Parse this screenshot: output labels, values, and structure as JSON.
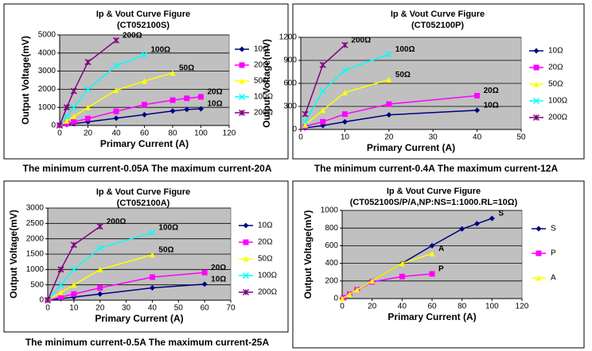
{
  "chart_data": [
    {
      "type": "line",
      "title": "Ip & Vout Curve Figure",
      "subtitle": "(CT052100S)",
      "y_label": "Output Voltage(mV)",
      "x_label": "Primary   Current (A)",
      "caption": "The minimum current-0.05A  The maximum current-20A",
      "xlim": [
        0,
        120
      ],
      "xticks": [
        0,
        20,
        40,
        60,
        80,
        100,
        120
      ],
      "ylim": [
        0,
        5000
      ],
      "yticks": [
        0,
        1000,
        2000,
        3000,
        4000,
        5000
      ],
      "grid": true,
      "series": [
        {
          "name": "10Ω",
          "color": "#000080",
          "x": [
            0,
            5,
            10,
            20,
            40,
            60,
            80,
            90,
            100
          ],
          "values": [
            0,
            50,
            100,
            200,
            400,
            600,
            800,
            880,
            920
          ]
        },
        {
          "name": "20Ω",
          "color": "#ff00ff",
          "x": [
            0,
            5,
            10,
            20,
            40,
            60,
            80,
            90,
            100
          ],
          "values": [
            0,
            100,
            200,
            380,
            780,
            1150,
            1400,
            1500,
            1580
          ]
        },
        {
          "name": "50Ω",
          "color": "#ffff00",
          "x": [
            0,
            5,
            10,
            20,
            40,
            60,
            80
          ],
          "values": [
            0,
            250,
            500,
            1000,
            1950,
            2450,
            2900
          ]
        },
        {
          "name": "100Ω",
          "color": "#00ffff",
          "x": [
            0,
            5,
            10,
            20,
            40,
            60
          ],
          "values": [
            0,
            500,
            1000,
            2000,
            3300,
            3900
          ]
        },
        {
          "name": "200Ω",
          "color": "#800080",
          "x": [
            0,
            5,
            10,
            20,
            40
          ],
          "values": [
            0,
            1000,
            1900,
            3500,
            4700
          ]
        }
      ],
      "annotations": [
        "200Ω",
        "100Ω",
        "50Ω",
        "20Ω",
        "10Ω"
      ]
    },
    {
      "type": "line",
      "title": "Ip & Vout Curve Figure",
      "subtitle": "(CT052100P)",
      "y_label": "Output Voltage(mV)",
      "x_label": "Primary   Current (A)",
      "caption": "The minimum current-0.4A  The maximum current-12A",
      "xlim": [
        0,
        50
      ],
      "xticks": [
        0,
        10,
        20,
        30,
        40,
        50
      ],
      "ylim": [
        0,
        1200
      ],
      "yticks": [
        0,
        300,
        600,
        900,
        1200
      ],
      "grid": true,
      "series": [
        {
          "name": "10Ω",
          "color": "#000080",
          "x": [
            1,
            5,
            10,
            20,
            40
          ],
          "values": [
            20,
            50,
            100,
            190,
            250
          ]
        },
        {
          "name": "20Ω",
          "color": "#ff00ff",
          "x": [
            1,
            5,
            10,
            20,
            40
          ],
          "values": [
            40,
            100,
            200,
            330,
            440
          ]
        },
        {
          "name": "50Ω",
          "color": "#ffff00",
          "x": [
            1,
            5,
            10,
            20
          ],
          "values": [
            60,
            250,
            480,
            650
          ]
        },
        {
          "name": "100Ω",
          "color": "#00ffff",
          "x": [
            1,
            5,
            10,
            20
          ],
          "values": [
            100,
            500,
            770,
            980
          ]
        },
        {
          "name": "200Ω",
          "color": "#800080",
          "x": [
            1,
            5,
            10
          ],
          "values": [
            200,
            840,
            1100
          ]
        }
      ],
      "annotations": [
        "200Ω",
        "100Ω",
        "50Ω",
        "20Ω",
        "10Ω"
      ]
    },
    {
      "type": "line",
      "title": "Ip & Vout Curve Figure",
      "subtitle": "(CT052100A)",
      "y_label": "Output Voltage(mV)",
      "x_label": "Primary   Current (A)",
      "caption": "The minimum current-0.5A  The maximum current-25A",
      "xlim": [
        0,
        70
      ],
      "xticks": [
        0,
        10,
        20,
        30,
        40,
        50,
        60,
        70
      ],
      "ylim": [
        0,
        3000
      ],
      "yticks": [
        0,
        500,
        1000,
        1500,
        2000,
        2500,
        3000
      ],
      "grid": true,
      "series": [
        {
          "name": "10Ω",
          "color": "#000080",
          "x": [
            0,
            5,
            10,
            20,
            40,
            60
          ],
          "values": [
            0,
            50,
            100,
            200,
            400,
            520
          ]
        },
        {
          "name": "20Ω",
          "color": "#ff00ff",
          "x": [
            0,
            5,
            10,
            20,
            40,
            60
          ],
          "values": [
            0,
            100,
            200,
            400,
            750,
            900
          ]
        },
        {
          "name": "50Ω",
          "color": "#ffff00",
          "x": [
            0,
            5,
            10,
            20,
            40
          ],
          "values": [
            0,
            250,
            500,
            1000,
            1480
          ]
        },
        {
          "name": "100Ω",
          "color": "#00ffff",
          "x": [
            0,
            5,
            10,
            20,
            40
          ],
          "values": [
            0,
            500,
            1000,
            1700,
            2200
          ]
        },
        {
          "name": "200Ω",
          "color": "#800080",
          "x": [
            0,
            5,
            10,
            20
          ],
          "values": [
            0,
            1000,
            1800,
            2400
          ]
        }
      ],
      "annotations": [
        "200Ω",
        "100Ω",
        "50Ω",
        "20Ω",
        "10Ω"
      ]
    },
    {
      "type": "line",
      "title": "Ip & Vout Curve Figure",
      "subtitle": "(CT052100S/P/A,NP:NS=1:1000.RL=10Ω)",
      "y_label": "Output Voltage(mV)",
      "x_label": "Primary   Current (A)",
      "xlim": [
        0,
        120
      ],
      "xticks": [
        0,
        20,
        40,
        60,
        80,
        100,
        120
      ],
      "ylim": [
        0,
        1000
      ],
      "yticks": [
        0,
        200,
        400,
        600,
        800,
        1000
      ],
      "grid": true,
      "series": [
        {
          "name": "S",
          "color": "#000080",
          "x": [
            0,
            5,
            10,
            20,
            40,
            60,
            80,
            90,
            100
          ],
          "values": [
            0,
            50,
            100,
            200,
            400,
            600,
            790,
            850,
            910
          ]
        },
        {
          "name": "P",
          "color": "#ff00ff",
          "x": [
            1,
            5,
            10,
            20,
            40,
            60
          ],
          "values": [
            10,
            50,
            100,
            190,
            250,
            280
          ]
        },
        {
          "name": "A",
          "color": "#ffff00",
          "x": [
            0,
            5,
            10,
            20,
            40,
            60
          ],
          "values": [
            0,
            50,
            100,
            200,
            400,
            510
          ]
        }
      ],
      "annotations": [
        "S",
        "A",
        "P"
      ]
    }
  ]
}
